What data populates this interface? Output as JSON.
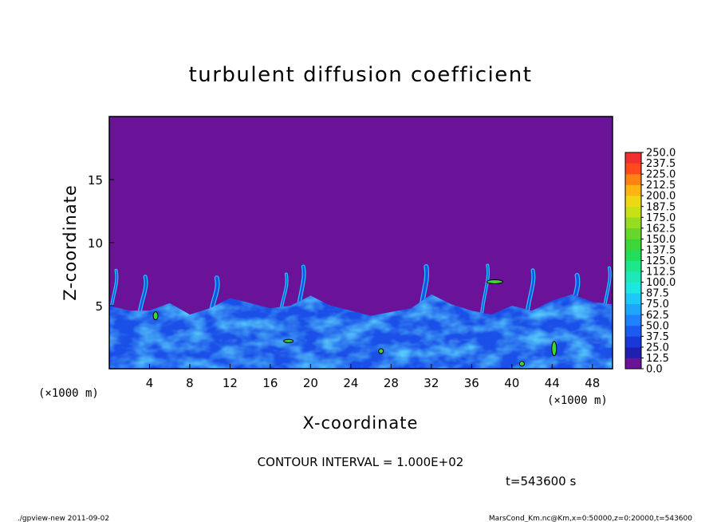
{
  "chart_data": {
    "type": "heatmap",
    "title": "turbulent diffusion coefficient",
    "xlabel": "X-coordinate",
    "ylabel": "Z-coordinate",
    "x_unit": "(×1000 m)",
    "y_unit": "(×1000 m)",
    "xlim": [
      0,
      50
    ],
    "ylim": [
      0,
      20
    ],
    "x_ticks": [
      4,
      8,
      12,
      16,
      20,
      24,
      28,
      32,
      36,
      40,
      44,
      48
    ],
    "y_ticks": [
      5,
      10,
      15
    ],
    "colorbar": {
      "levels": [
        0.0,
        12.5,
        25.0,
        37.5,
        50.0,
        62.5,
        75.0,
        87.5,
        100.0,
        112.5,
        125.0,
        137.5,
        150.0,
        162.5,
        175.0,
        187.5,
        200.0,
        212.5,
        225.0,
        237.5,
        250.0
      ],
      "labels": [
        "0.0",
        "12.5",
        "25.0",
        "37.5",
        "50.0",
        "62.5",
        "75.0",
        "87.5",
        "100.0",
        "112.5",
        "125.0",
        "137.5",
        "150.0",
        "162.5",
        "175.0",
        "187.5",
        "200.0",
        "212.5",
        "225.0",
        "237.5",
        "250.0"
      ],
      "colors": [
        "#6a1399",
        "#1f1fb0",
        "#1a38d6",
        "#1a5cf0",
        "#1e82ff",
        "#1ea6ff",
        "#1ec8f8",
        "#1ee6e0",
        "#1ee8b8",
        "#1ee68c",
        "#22dc5a",
        "#3ed636",
        "#66d62a",
        "#96dc22",
        "#c8e018",
        "#ecd814",
        "#ffb414",
        "#ff8214",
        "#ff4a1a",
        "#f03030",
        "#f08c96"
      ]
    },
    "boundary_layer_top_approx": [
      [
        0,
        5.0
      ],
      [
        2,
        4.6
      ],
      [
        4,
        4.6
      ],
      [
        6,
        5.2
      ],
      [
        8,
        4.3
      ],
      [
        10,
        4.8
      ],
      [
        12,
        5.6
      ],
      [
        14,
        5.2
      ],
      [
        16,
        4.8
      ],
      [
        18,
        5.0
      ],
      [
        20,
        5.8
      ],
      [
        22,
        5.0
      ],
      [
        24,
        4.6
      ],
      [
        26,
        4.2
      ],
      [
        28,
        4.5
      ],
      [
        30,
        4.8
      ],
      [
        32,
        5.9
      ],
      [
        34,
        5.1
      ],
      [
        36,
        4.6
      ],
      [
        38,
        4.3
      ],
      [
        40,
        5.0
      ],
      [
        42,
        4.6
      ],
      [
        44,
        5.4
      ],
      [
        46,
        5.9
      ],
      [
        48,
        5.3
      ],
      [
        50,
        5.1
      ]
    ],
    "plumes_approx": [
      {
        "x": 0.6,
        "z_top": 7.8
      },
      {
        "x": 3.5,
        "z_top": 7.3
      },
      {
        "x": 10.6,
        "z_top": 7.2
      },
      {
        "x": 17.5,
        "z_top": 7.5
      },
      {
        "x": 19.2,
        "z_top": 8.1
      },
      {
        "x": 31.4,
        "z_top": 8.1
      },
      {
        "x": 37.5,
        "z_top": 8.2
      },
      {
        "x": 42.0,
        "z_top": 7.8
      },
      {
        "x": 46.4,
        "z_top": 7.4
      },
      {
        "x": 49.6,
        "z_top": 8.0
      }
    ]
  },
  "contour_interval": "CONTOUR INTERVAL = 1.000E+02",
  "time_label": "t=543600 s",
  "footer_left": "./gpview-new  2011-09-02",
  "footer_right": "MarsCond_Km.nc@Km,x=0:50000,z=0:20000,t=543600"
}
